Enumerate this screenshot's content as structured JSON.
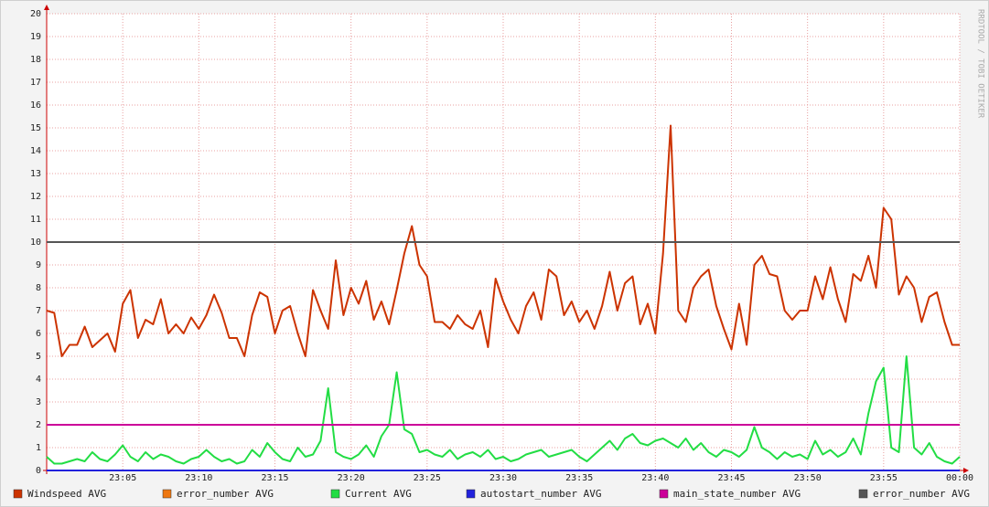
{
  "chart_data": {
    "type": "line",
    "watermark": "RRDTOOL / TOBI OETIKER",
    "x": [
      0,
      0.5,
      1,
      1.5,
      2,
      2.5,
      3,
      3.5,
      4,
      4.5,
      5,
      5.5,
      6,
      6.5,
      7,
      7.5,
      8,
      8.5,
      9,
      9.5,
      10,
      10.5,
      11,
      11.5,
      12,
      12.5,
      13,
      13.5,
      14,
      14.5,
      15,
      15.5,
      16,
      16.5,
      17,
      17.5,
      18,
      18.5,
      19,
      19.5,
      20,
      20.5,
      21,
      21.5,
      22,
      22.5,
      23,
      23.5,
      24,
      24.5,
      25,
      25.5,
      26,
      26.5,
      27,
      27.5,
      28,
      28.5,
      29,
      29.5,
      30,
      30.5,
      31,
      31.5,
      32,
      32.5,
      33,
      33.5,
      34,
      34.5,
      35,
      35.5,
      36,
      36.5,
      37,
      37.5,
      38,
      38.5,
      39,
      39.5,
      40,
      40.5,
      41,
      41.5,
      42,
      42.5,
      43,
      43.5,
      44,
      44.5,
      45,
      45.5,
      46,
      46.5,
      47,
      47.5,
      48,
      48.5,
      49,
      49.5,
      50,
      50.5,
      51,
      51.5,
      52,
      52.5,
      53,
      53.5,
      54,
      54.5,
      55,
      55.5,
      56,
      56.5,
      57,
      57.5,
      58,
      58.5,
      59,
      59.5,
      60
    ],
    "xlim": [
      0,
      60
    ],
    "xticks": [
      {
        "value": 5,
        "label": "23:05"
      },
      {
        "value": 10,
        "label": "23:10"
      },
      {
        "value": 15,
        "label": "23:15"
      },
      {
        "value": 20,
        "label": "23:20"
      },
      {
        "value": 25,
        "label": "23:25"
      },
      {
        "value": 30,
        "label": "23:30"
      },
      {
        "value": 35,
        "label": "23:35"
      },
      {
        "value": 40,
        "label": "23:40"
      },
      {
        "value": 45,
        "label": "23:45"
      },
      {
        "value": 50,
        "label": "23:50"
      },
      {
        "value": 55,
        "label": "23:55"
      },
      {
        "value": 60,
        "label": "00:00"
      }
    ],
    "ylim": [
      0,
      20
    ],
    "yticks": [
      0,
      1,
      2,
      3,
      4,
      5,
      6,
      7,
      8,
      9,
      10,
      11,
      12,
      13,
      14,
      15,
      16,
      17,
      18,
      19,
      20
    ],
    "grid": true,
    "series": [
      {
        "name": "Windspeed AVG",
        "color": "#cc3300",
        "values": [
          7.0,
          6.9,
          5.0,
          5.5,
          5.5,
          6.3,
          5.4,
          5.7,
          6.0,
          5.2,
          7.3,
          7.9,
          5.8,
          6.6,
          6.4,
          7.5,
          6.0,
          6.4,
          6.0,
          6.7,
          6.2,
          6.8,
          7.7,
          6.9,
          5.8,
          5.8,
          5.0,
          6.8,
          7.8,
          7.6,
          6.0,
          7.0,
          7.2,
          6.0,
          5.0,
          7.9,
          7.0,
          6.2,
          9.2,
          6.8,
          8.0,
          7.3,
          8.3,
          6.6,
          7.4,
          6.4,
          7.9,
          9.5,
          10.7,
          9.0,
          8.5,
          6.5,
          6.5,
          6.2,
          6.8,
          6.4,
          6.2,
          7.0,
          5.4,
          8.4,
          7.4,
          6.6,
          6.0,
          7.2,
          7.8,
          6.6,
          8.8,
          8.5,
          6.8,
          7.4,
          6.5,
          7.0,
          6.2,
          7.2,
          8.7,
          7.0,
          8.2,
          8.5,
          6.4,
          7.3,
          6.0,
          9.5,
          15.1,
          7.0,
          6.5,
          8.0,
          8.5,
          8.8,
          7.2,
          6.2,
          5.3,
          7.3,
          5.5,
          9.0,
          9.4,
          8.6,
          8.5,
          7.0,
          6.6,
          7.0,
          7.0,
          8.5,
          7.5,
          8.9,
          7.5,
          6.5,
          8.6,
          8.3,
          9.4,
          8.0,
          11.5,
          11.0,
          7.7,
          8.5,
          8.0,
          6.5,
          7.6,
          7.8,
          6.5,
          5.5,
          5.5
        ]
      },
      {
        "name": "error_number AVG",
        "color": "#ee7711",
        "values": [
          0,
          0,
          0,
          0,
          0,
          0,
          0,
          0,
          0,
          0,
          0,
          0,
          0,
          0,
          0,
          0,
          0,
          0,
          0,
          0,
          0,
          0,
          0,
          0,
          0,
          0,
          0,
          0,
          0,
          0,
          0,
          0,
          0,
          0,
          0,
          0,
          0,
          0,
          0,
          0,
          0,
          0,
          0,
          0,
          0,
          0,
          0,
          0,
          0,
          0,
          0,
          0,
          0,
          0,
          0,
          0,
          0,
          0,
          0,
          0,
          0,
          0,
          0,
          0,
          0,
          0,
          0,
          0,
          0,
          0,
          0,
          0,
          0,
          0,
          0,
          0,
          0,
          0,
          0,
          0,
          0,
          0,
          0,
          0,
          0,
          0,
          0,
          0,
          0,
          0,
          0,
          0,
          0,
          0,
          0,
          0,
          0,
          0,
          0,
          0,
          0,
          0,
          0,
          0,
          0,
          0,
          0,
          0,
          0,
          0,
          0,
          0,
          0,
          0,
          0,
          0,
          0,
          0,
          0,
          0,
          0
        ]
      },
      {
        "name": "Current AVG",
        "color": "#22dd44",
        "values": [
          0.6,
          0.3,
          0.3,
          0.4,
          0.5,
          0.4,
          0.8,
          0.5,
          0.4,
          0.7,
          1.1,
          0.6,
          0.4,
          0.8,
          0.5,
          0.7,
          0.6,
          0.4,
          0.3,
          0.5,
          0.6,
          0.9,
          0.6,
          0.4,
          0.5,
          0.3,
          0.4,
          0.9,
          0.6,
          1.2,
          0.8,
          0.5,
          0.4,
          1.0,
          0.6,
          0.7,
          1.3,
          3.6,
          0.8,
          0.6,
          0.5,
          0.7,
          1.1,
          0.6,
          1.5,
          2.0,
          4.3,
          1.8,
          1.6,
          0.8,
          0.9,
          0.7,
          0.6,
          0.9,
          0.5,
          0.7,
          0.8,
          0.6,
          0.9,
          0.5,
          0.6,
          0.4,
          0.5,
          0.7,
          0.8,
          0.9,
          0.6,
          0.7,
          0.8,
          0.9,
          0.6,
          0.4,
          0.7,
          1.0,
          1.3,
          0.9,
          1.4,
          1.6,
          1.2,
          1.1,
          1.3,
          1.4,
          1.2,
          1.0,
          1.4,
          0.9,
          1.2,
          0.8,
          0.6,
          0.9,
          0.8,
          0.6,
          0.9,
          1.9,
          1.0,
          0.8,
          0.5,
          0.8,
          0.6,
          0.7,
          0.5,
          1.3,
          0.7,
          0.9,
          0.6,
          0.8,
          1.4,
          0.7,
          2.5,
          3.9,
          4.5,
          1.0,
          0.8,
          5.0,
          1.0,
          0.7,
          1.2,
          0.6,
          0.4,
          0.3,
          0.6
        ]
      },
      {
        "name": "autostart_number AVG",
        "color": "#2222dd",
        "values": [
          0,
          0,
          0,
          0,
          0,
          0,
          0,
          0,
          0,
          0,
          0,
          0,
          0,
          0,
          0,
          0,
          0,
          0,
          0,
          0,
          0,
          0,
          0,
          0,
          0,
          0,
          0,
          0,
          0,
          0,
          0,
          0,
          0,
          0,
          0,
          0,
          0,
          0,
          0,
          0,
          0,
          0,
          0,
          0,
          0,
          0,
          0,
          0,
          0,
          0,
          0,
          0,
          0,
          0,
          0,
          0,
          0,
          0,
          0,
          0,
          0,
          0,
          0,
          0,
          0,
          0,
          0,
          0,
          0,
          0,
          0,
          0,
          0,
          0,
          0,
          0,
          0,
          0,
          0,
          0,
          0,
          0,
          0,
          0,
          0,
          0,
          0,
          0,
          0,
          0,
          0,
          0,
          0,
          0,
          0,
          0,
          0,
          0,
          0,
          0,
          0,
          0,
          0,
          0,
          0,
          0,
          0,
          0,
          0,
          0,
          0,
          0,
          0,
          0,
          0,
          0,
          0,
          0,
          0,
          0,
          0
        ]
      },
      {
        "name": "main_state_number AVG",
        "color": "#cc0099",
        "values": [
          2,
          2,
          2,
          2,
          2,
          2,
          2,
          2,
          2,
          2,
          2,
          2,
          2,
          2,
          2,
          2,
          2,
          2,
          2,
          2,
          2,
          2,
          2,
          2,
          2,
          2,
          2,
          2,
          2,
          2,
          2,
          2,
          2,
          2,
          2,
          2,
          2,
          2,
          2,
          2,
          2,
          2,
          2,
          2,
          2,
          2,
          2,
          2,
          2,
          2,
          2,
          2,
          2,
          2,
          2,
          2,
          2,
          2,
          2,
          2,
          2,
          2,
          2,
          2,
          2,
          2,
          2,
          2,
          2,
          2,
          2,
          2,
          2,
          2,
          2,
          2,
          2,
          2,
          2,
          2,
          2,
          2,
          2,
          2,
          2,
          2,
          2,
          2,
          2,
          2,
          2,
          2,
          2,
          2,
          2,
          2,
          2,
          2,
          2,
          2,
          2,
          2,
          2,
          2,
          2,
          2,
          2,
          2,
          2,
          2,
          2,
          2,
          2,
          2,
          2,
          2,
          2,
          2,
          2,
          2,
          2
        ]
      },
      {
        "name": "error_number AVG",
        "color": "#555555",
        "values": [
          10,
          10,
          10,
          10,
          10,
          10,
          10,
          10,
          10,
          10,
          10,
          10,
          10,
          10,
          10,
          10,
          10,
          10,
          10,
          10,
          10,
          10,
          10,
          10,
          10,
          10,
          10,
          10,
          10,
          10,
          10,
          10,
          10,
          10,
          10,
          10,
          10,
          10,
          10,
          10,
          10,
          10,
          10,
          10,
          10,
          10,
          10,
          10,
          10,
          10,
          10,
          10,
          10,
          10,
          10,
          10,
          10,
          10,
          10,
          10,
          10,
          10,
          10,
          10,
          10,
          10,
          10,
          10,
          10,
          10,
          10,
          10,
          10,
          10,
          10,
          10,
          10,
          10,
          10,
          10,
          10,
          10,
          10,
          10,
          10,
          10,
          10,
          10,
          10,
          10,
          10,
          10,
          10,
          10,
          10,
          10,
          10,
          10,
          10,
          10,
          10,
          10,
          10,
          10,
          10,
          10,
          10,
          10,
          10,
          10,
          10,
          10,
          10,
          10,
          10,
          10,
          10,
          10,
          10,
          10,
          10
        ]
      }
    ]
  }
}
